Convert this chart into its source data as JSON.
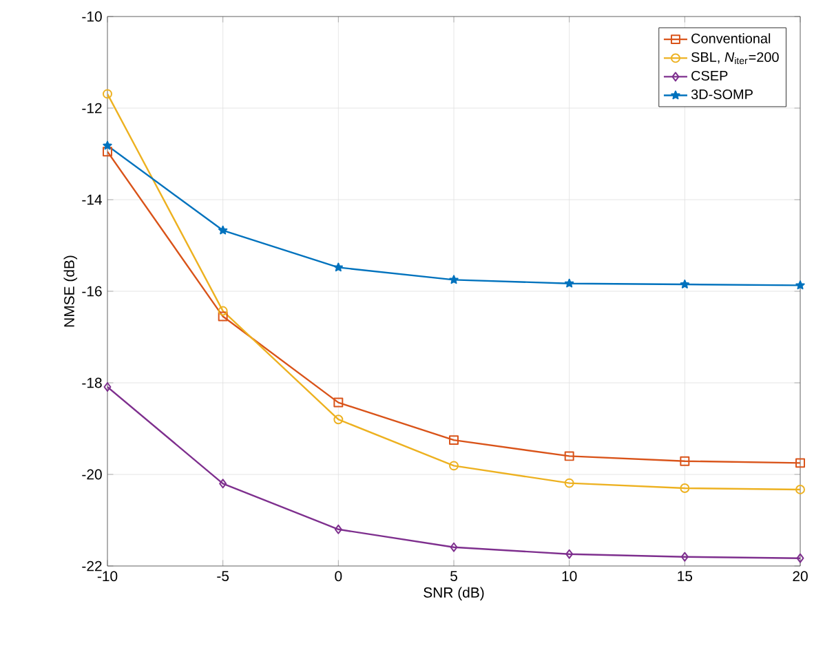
{
  "chart_data": {
    "type": "line",
    "xlabel": "SNR (dB)",
    "ylabel": "NMSE (dB)",
    "x": [
      -10,
      -5,
      0,
      5,
      10,
      15,
      20
    ],
    "xlim": [
      -10,
      20
    ],
    "xticks": [
      -10,
      -5,
      0,
      5,
      10,
      15,
      20
    ],
    "ylim": [
      -22,
      -10
    ],
    "yticks": [
      -22,
      -20,
      -18,
      -16,
      -14,
      -12,
      -10
    ],
    "grid": true,
    "legend": "top right",
    "line_style": "solid",
    "series": [
      {
        "name": "Conventional",
        "color": "#d95319",
        "marker": "square",
        "values": [
          -12.95,
          -16.55,
          -18.43,
          -19.25,
          -19.6,
          -19.71,
          -19.75
        ]
      },
      {
        "name": "SBL, *N*$_{iter}$=200",
        "color": "#edb120",
        "marker": "circle",
        "values": [
          -11.69,
          -16.43,
          -18.8,
          -19.81,
          -20.19,
          -20.3,
          -20.33
        ]
      },
      {
        "name": "CSEP",
        "color": "#7e2f8e",
        "marker": "diamond",
        "values": [
          -18.09,
          -20.2,
          -21.2,
          -21.59,
          -21.74,
          -21.8,
          -21.83
        ]
      },
      {
        "name": "3D-SOMP",
        "color": "#0072bd",
        "marker": "star",
        "values": [
          -12.82,
          -14.67,
          -15.48,
          -15.75,
          -15.83,
          -15.85,
          -15.87
        ]
      }
    ]
  }
}
